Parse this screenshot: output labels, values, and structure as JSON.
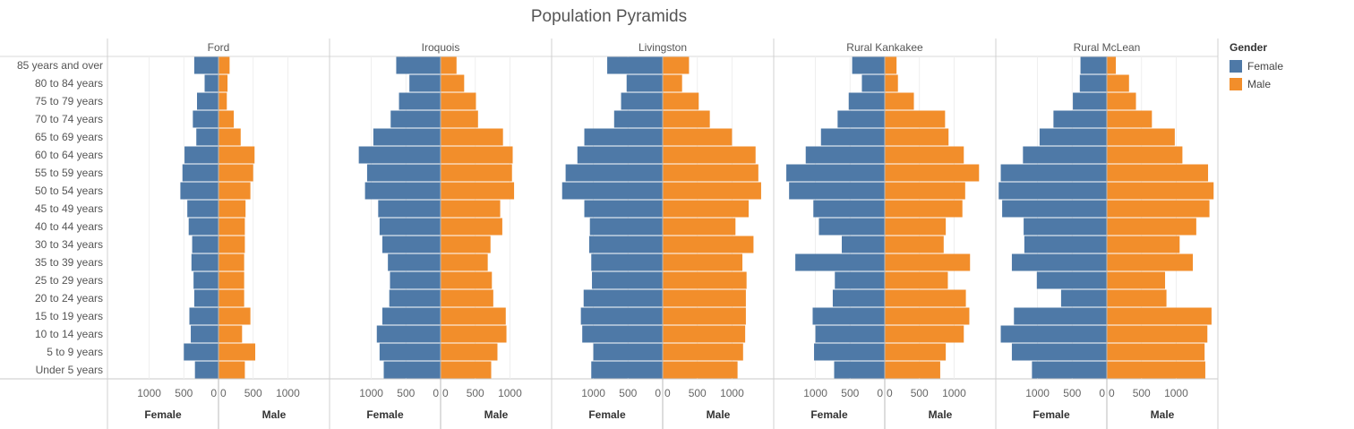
{
  "chart_data": {
    "type": "bar",
    "subtype": "population-pyramid",
    "title": "Population Pyramids",
    "legend": {
      "title": "Gender",
      "placement": "right",
      "entries": [
        {
          "label": "Female",
          "color": "#4e79a7"
        },
        {
          "label": "Male",
          "color": "#f28e2b"
        }
      ]
    },
    "categories": [
      "85 years and over",
      "80 to 84 years",
      "75 to 79 years",
      "70 to 74 years",
      "65 to 69 years",
      "60 to 64 years",
      "55 to 59 years",
      "50 to 54 years",
      "45 to 49 years",
      "40 to 44 years",
      "30 to 34 years",
      "35 to 39 years",
      "25 to 29 years",
      "20 to 24 years",
      "15 to 19 years",
      "10 to 14 years",
      "5 to 9 years",
      "Under 5 years"
    ],
    "axis": {
      "female_label": "Female",
      "male_label": "Male",
      "female_ticks": [
        1000,
        500,
        0
      ],
      "male_ticks": [
        0,
        500,
        1000
      ],
      "range": [
        0,
        1550
      ]
    },
    "panels": [
      {
        "name": "Ford",
        "female": [
          350,
          200,
          310,
          370,
          320,
          490,
          520,
          550,
          450,
          430,
          380,
          390,
          360,
          350,
          420,
          400,
          500,
          340
        ],
        "male": [
          160,
          130,
          120,
          220,
          320,
          520,
          500,
          460,
          390,
          380,
          380,
          370,
          370,
          370,
          460,
          340,
          530,
          380
        ]
      },
      {
        "name": "Iroquois",
        "female": [
          640,
          450,
          600,
          720,
          970,
          1180,
          1060,
          1090,
          900,
          880,
          840,
          760,
          730,
          740,
          840,
          920,
          880,
          820
        ],
        "male": [
          230,
          340,
          510,
          540,
          900,
          1040,
          1030,
          1060,
          860,
          890,
          720,
          680,
          740,
          760,
          940,
          950,
          820,
          730
        ]
      },
      {
        "name": "Livingston",
        "female": [
          800,
          520,
          600,
          700,
          1130,
          1230,
          1400,
          1450,
          1130,
          1050,
          1060,
          1030,
          1020,
          1140,
          1180,
          1160,
          1000,
          1030
        ],
        "male": [
          380,
          280,
          520,
          680,
          1000,
          1340,
          1380,
          1420,
          1240,
          1050,
          1310,
          1150,
          1210,
          1200,
          1200,
          1190,
          1160,
          1080
        ]
      },
      {
        "name": "Rural Kankakee",
        "female": [
          470,
          330,
          520,
          680,
          920,
          1140,
          1420,
          1380,
          1030,
          950,
          620,
          1290,
          720,
          750,
          1040,
          1000,
          1020,
          730
        ],
        "male": [
          170,
          190,
          420,
          870,
          920,
          1140,
          1360,
          1160,
          1120,
          880,
          850,
          1230,
          910,
          1170,
          1220,
          1140,
          880,
          800
        ]
      },
      {
        "name": "Rural McLean",
        "female": [
          380,
          390,
          490,
          770,
          970,
          1210,
          1530,
          1560,
          1510,
          1200,
          1190,
          1370,
          1010,
          660,
          1340,
          1530,
          1370,
          1080
        ],
        "male": [
          130,
          320,
          420,
          650,
          980,
          1090,
          1460,
          1540,
          1480,
          1290,
          1050,
          1240,
          840,
          860,
          1510,
          1450,
          1410,
          1420
        ]
      }
    ]
  }
}
